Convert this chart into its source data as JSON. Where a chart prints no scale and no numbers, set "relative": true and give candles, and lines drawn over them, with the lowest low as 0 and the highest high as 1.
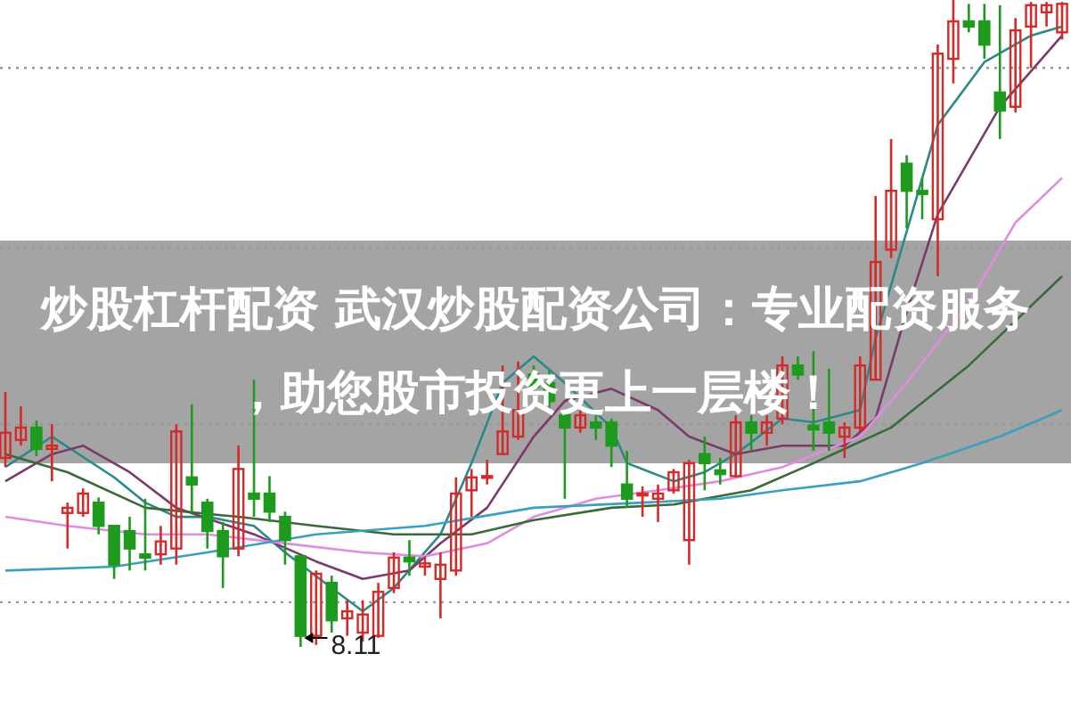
{
  "chart_data": {
    "type": "candlestick",
    "title": "炒股杠杆配资 武汉炒股配资公司：专业配资服务，助您股市投资更上一层楼！",
    "relative": true,
    "categories": [
      null,
      null,
      null,
      null,
      null,
      null,
      null,
      null,
      null,
      null,
      null,
      null,
      null,
      null,
      null,
      null,
      null,
      null,
      null,
      null,
      null,
      null,
      null,
      null,
      null,
      null,
      null,
      null,
      null,
      null,
      null,
      null,
      null,
      null,
      null,
      null,
      null,
      null,
      null,
      null,
      null,
      null,
      null,
      null,
      null,
      null,
      null,
      null,
      null,
      null,
      null,
      null,
      null,
      null,
      null,
      null,
      null,
      null,
      null,
      null,
      null,
      null,
      null,
      null,
      null,
      null,
      null,
      null,
      null
    ],
    "ohlc": [
      [
        0.292,
        0.394,
        0.278,
        0.331
      ],
      [
        0.32,
        0.372,
        0.311,
        0.339
      ],
      [
        0.339,
        0.35,
        0.295,
        0.306
      ],
      [
        0.306,
        0.344,
        0.256,
        0.311
      ],
      [
        0.207,
        0.223,
        0.152,
        0.215
      ],
      [
        0.207,
        0.245,
        0.201,
        0.237
      ],
      [
        0.223,
        0.231,
        0.174,
        0.187
      ],
      [
        0.187,
        0.187,
        0.105,
        0.127
      ],
      [
        0.179,
        0.201,
        0.118,
        0.152
      ],
      [
        0.143,
        0.229,
        0.118,
        0.138
      ],
      [
        0.143,
        0.187,
        0.127,
        0.163
      ],
      [
        0.152,
        0.344,
        0.127,
        0.333
      ],
      [
        0.262,
        0.375,
        0.209,
        0.251
      ],
      [
        0.223,
        0.229,
        0.152,
        0.179
      ],
      [
        0.179,
        0.193,
        0.091,
        0.14
      ],
      [
        0.152,
        0.311,
        0.14,
        0.275
      ],
      [
        0.237,
        0.413,
        0.201,
        0.229
      ],
      [
        0.237,
        0.264,
        0.193,
        0.209
      ],
      [
        0.201,
        0.209,
        0.127,
        0.165
      ],
      [
        0.14,
        0.14,
        0,
        0.017
      ],
      [
        0.017,
        0.118,
        0.003,
        0.113
      ],
      [
        0.099,
        0.11,
        0.022,
        0.041
      ],
      [
        0.044,
        0.072,
        0.017,
        0.055
      ],
      [
        0.022,
        0.072,
        0.008,
        0.05
      ],
      [
        0.017,
        0.099,
        0.014,
        0.085
      ],
      [
        0.091,
        0.146,
        0.083,
        0.138
      ],
      [
        0.138,
        0.165,
        0.11,
        0.132
      ],
      [
        0.124,
        0.14,
        0.11,
        0.129
      ],
      [
        0.105,
        0.146,
        0.044,
        0.127
      ],
      [
        0.118,
        0.262,
        0.11,
        0.237
      ],
      [
        0.242,
        0.275,
        0.201,
        0.262
      ],
      [
        0.262,
        0.289,
        0.251,
        0.264
      ],
      [
        0.298,
        0.435,
        0.298,
        0.333
      ],
      [
        0.325,
        0.441,
        0.32,
        0.366
      ],
      [
        0.421,
        0.435,
        0.394,
        0.402
      ],
      [
        0.408,
        0.427,
        0.366,
        0.38
      ],
      [
        0.358,
        0.366,
        0.229,
        0.339
      ],
      [
        0.339,
        0.366,
        0.331,
        0.358
      ],
      [
        0.347,
        0.366,
        0.32,
        0.339
      ],
      [
        0.347,
        0.353,
        0.278,
        0.311
      ],
      [
        0.251,
        0.303,
        0.215,
        0.229
      ],
      [
        0.234,
        0.248,
        0.201,
        0.237
      ],
      [
        0.229,
        0.251,
        0.193,
        0.237
      ],
      [
        0.242,
        0.275,
        0.237,
        0.27
      ],
      [
        0.165,
        0.289,
        0.127,
        0.284
      ],
      [
        0.298,
        0.325,
        0.242,
        0.284
      ],
      [
        0.273,
        0.292,
        0.251,
        0.267
      ],
      [
        0.264,
        0.358,
        0.262,
        0.347
      ],
      [
        0.347,
        0.358,
        0.303,
        0.331
      ],
      [
        0.331,
        0.358,
        0.311,
        0.347
      ],
      [
        0.353,
        0.449,
        0.344,
        0.435
      ],
      [
        0.435,
        0.449,
        0.413,
        0.421
      ],
      [
        0.342,
        0.457,
        0.303,
        0.336
      ],
      [
        0.347,
        0.43,
        0.303,
        0.331
      ],
      [
        0.325,
        0.347,
        0.292,
        0.339
      ],
      [
        0.339,
        0.449,
        0.333,
        0.435
      ],
      [
        0.413,
        0.697,
        0.413,
        0.595
      ],
      [
        0.614,
        0.785,
        0.601,
        0.705
      ],
      [
        0.747,
        0.76,
        0.647,
        0.705
      ],
      [
        0.705,
        0.725,
        0.661,
        0.7
      ],
      [
        0.661,
        0.931,
        0.573,
        0.917
      ],
      [
        0.909,
        1,
        0.871,
        0.967
      ],
      [
        0.967,
        0.994,
        0.95,
        0.959
      ],
      [
        0.967,
        0.994,
        0.909,
        0.931
      ],
      [
        0.857,
        0.992,
        0.785,
        0.829
      ],
      [
        0.835,
        0.972,
        0.826,
        0.953
      ],
      [
        0.959,
        0.997,
        0.895,
        0.992
      ],
      [
        0.981,
        0.997,
        0.959,
        0.992
      ],
      [
        0.95,
        0.997,
        0.939,
        0.994
      ]
    ],
    "series": [
      {
        "type": "line",
        "color": "#2a8a8a",
        "values": [
          0.278,
          null,
          null,
          0.325,
          null,
          null,
          null,
          0.262,
          null,
          0.223,
          null,
          0.201,
          null,
          0.201,
          null,
          null,
          0.187,
          null,
          0.146,
          null,
          null,
          0.091,
          null,
          0.055,
          null,
          0.091,
          null,
          null,
          0.174,
          null,
          0.284,
          null,
          0.408,
          null,
          0.449,
          null,
          0.408,
          null,
          null,
          0.339,
          0.284,
          null,
          null,
          0.256,
          null,
          0.27,
          null,
          0.298,
          null,
          null,
          0.353,
          null,
          0.347,
          null,
          null,
          0.366,
          0.477,
          null,
          0.642,
          null,
          0.807,
          null,
          null,
          0.904,
          null,
          null,
          0.945,
          null,
          0.959
        ]
      },
      {
        "type": "line",
        "color": "#7a3a6a",
        "values": [
          0.256,
          null,
          null,
          0.298,
          null,
          0.311,
          null,
          null,
          0.27,
          null,
          null,
          0.215,
          null,
          null,
          null,
          null,
          0.174,
          null,
          null,
          null,
          0.132,
          null,
          null,
          0.105,
          null,
          null,
          0.118,
          null,
          0.16,
          null,
          null,
          0.215,
          null,
          null,
          0.325,
          null,
          0.38,
          null,
          null,
          0.399,
          null,
          null,
          0.366,
          null,
          0.325,
          null,
          null,
          0.298,
          null,
          null,
          0.311,
          null,
          null,
          null,
          0.311,
          null,
          0.353,
          null,
          0.518,
          null,
          0.669,
          null,
          null,
          null,
          0.835,
          null,
          null,
          null,
          0.945
        ]
      },
      {
        "type": "line",
        "color": "#e08ce0",
        "values": [
          0.201,
          null,
          null,
          null,
          0.187,
          null,
          null,
          null,
          null,
          0.174,
          null,
          null,
          null,
          0.174,
          null,
          null,
          null,
          null,
          0.16,
          null,
          null,
          null,
          null,
          0.146,
          null,
          null,
          null,
          0.14,
          null,
          null,
          null,
          0.16,
          null,
          null,
          0.201,
          null,
          null,
          null,
          0.229,
          null,
          null,
          null,
          0.242,
          null,
          null,
          null,
          0.256,
          null,
          null,
          null,
          0.278,
          null,
          null,
          null,
          null,
          0.325,
          null,
          null,
          0.408,
          null,
          null,
          null,
          0.532,
          null,
          null,
          0.656,
          null,
          null,
          0.725
        ]
      },
      {
        "type": "line",
        "color": "#3a6a3a",
        "values": [
          0.298,
          null,
          null,
          null,
          0.27,
          null,
          null,
          null,
          null,
          0.215,
          null,
          null,
          null,
          null,
          null,
          0.201,
          null,
          null,
          null,
          null,
          0.187,
          null,
          null,
          null,
          null,
          0.174,
          null,
          null,
          null,
          null,
          0.174,
          null,
          null,
          null,
          0.196,
          null,
          null,
          null,
          null,
          0.215,
          null,
          null,
          null,
          0.22,
          null,
          null,
          null,
          null,
          0.242,
          null,
          null,
          null,
          0.284,
          null,
          null,
          null,
          null,
          0.339,
          null,
          null,
          null,
          null,
          0.435,
          null,
          null,
          0.504,
          null,
          null,
          0.573
        ]
      },
      {
        "type": "line",
        "color": "#3aa0c0",
        "values": [
          0.118,
          null,
          null,
          null,
          null,
          null,
          null,
          0.124,
          null,
          null,
          null,
          null,
          null,
          0.146,
          null,
          null,
          null,
          null,
          null,
          null,
          0.174,
          null,
          null,
          null,
          null,
          null,
          null,
          0.187,
          null,
          null,
          null,
          null,
          null,
          null,
          0.215,
          null,
          null,
          null,
          null,
          null,
          null,
          0.223,
          null,
          null,
          null,
          null,
          0.229,
          null,
          null,
          null,
          0.242,
          null,
          null,
          null,
          null,
          0.256,
          null,
          null,
          null,
          0.284,
          null,
          null,
          null,
          null,
          0.325,
          null,
          null,
          null,
          0.366
        ]
      }
    ],
    "ref_lines": [
      {
        "axis": "y",
        "value": 0.895,
        "color": "#999999",
        "line_style": "dotted"
      },
      {
        "axis": "y",
        "value": 0.617,
        "color": "#999999",
        "line_style": "dotted"
      },
      {
        "axis": "y",
        "value": 0.344,
        "color": "#999999",
        "line_style": "dotted"
      },
      {
        "axis": "y",
        "value": 0.069,
        "color": "#999999",
        "line_style": "dotted"
      }
    ],
    "annotations": [
      "8.11"
    ]
  }
}
